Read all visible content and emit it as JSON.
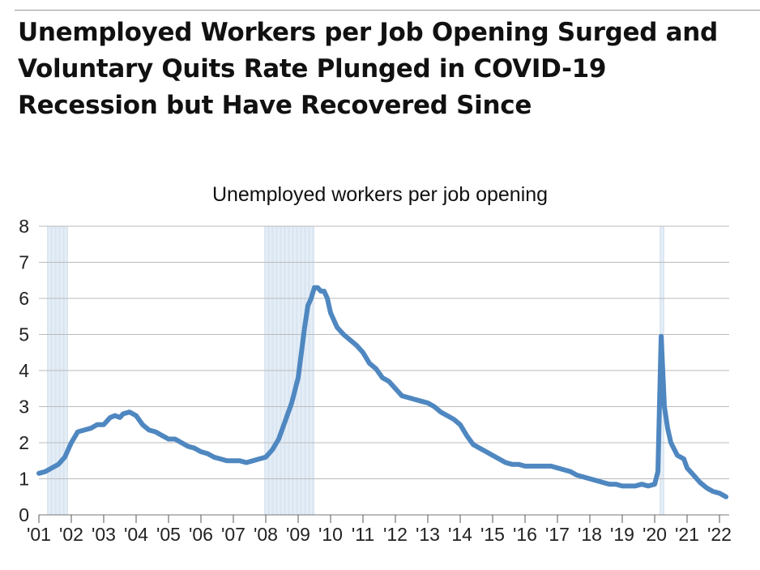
{
  "title": "Unemployed Workers per Job Opening Surged and Voluntary Quits Rate Plunged in COVID-19 Recession but Have Recovered Since",
  "colors": {
    "line": "#4f87c0",
    "recession": "#dbe7f3",
    "grid": "#bbbbbb"
  },
  "chart_data": {
    "type": "line",
    "title": "Unemployed workers per job opening",
    "xlabel": "",
    "ylabel": "",
    "ylim": [
      0,
      8
    ],
    "yticks": [
      0,
      1,
      2,
      3,
      4,
      5,
      6,
      7,
      8
    ],
    "xlim": [
      2001.0,
      2022.3
    ],
    "xticks": [
      "'01",
      "'02",
      "'03",
      "'04",
      "'05",
      "'06",
      "'07",
      "'08",
      "'09",
      "'10",
      "'11",
      "'12",
      "'13",
      "'14",
      "'15",
      "'16",
      "'17",
      "'18",
      "'19",
      "'20",
      "'21",
      "'22"
    ],
    "grid": true,
    "legend": "none",
    "recessions": [
      [
        2001.25,
        2001.9
      ],
      [
        2007.95,
        2009.5
      ],
      [
        2020.15,
        2020.3
      ]
    ],
    "series": [
      {
        "x": [
          2001.0,
          2001.2,
          2001.4,
          2001.6,
          2001.8,
          2002.0,
          2002.2,
          2002.4,
          2002.6,
          2002.8,
          2003.0,
          2003.2,
          2003.35,
          2003.5,
          2003.6,
          2003.8,
          2004.0,
          2004.2,
          2004.4,
          2004.6,
          2004.8,
          2005.0,
          2005.2,
          2005.4,
          2005.6,
          2005.8,
          2006.0,
          2006.2,
          2006.4,
          2006.6,
          2006.8,
          2007.0,
          2007.2,
          2007.4,
          2007.6,
          2007.8,
          2008.0,
          2008.2,
          2008.4,
          2008.6,
          2008.8,
          2009.0,
          2009.1,
          2009.2,
          2009.3,
          2009.4,
          2009.5,
          2009.6,
          2009.7,
          2009.8,
          2009.9,
          2010.0,
          2010.2,
          2010.4,
          2010.6,
          2010.8,
          2011.0,
          2011.2,
          2011.4,
          2011.6,
          2011.8,
          2012.0,
          2012.2,
          2012.4,
          2012.6,
          2012.8,
          2013.0,
          2013.2,
          2013.4,
          2013.6,
          2013.8,
          2014.0,
          2014.2,
          2014.4,
          2014.6,
          2014.8,
          2015.0,
          2015.2,
          2015.4,
          2015.6,
          2015.8,
          2016.0,
          2016.2,
          2016.4,
          2016.6,
          2016.8,
          2017.0,
          2017.2,
          2017.4,
          2017.6,
          2017.8,
          2018.0,
          2018.2,
          2018.4,
          2018.6,
          2018.8,
          2019.0,
          2019.2,
          2019.4,
          2019.6,
          2019.8,
          2020.0,
          2020.1,
          2020.2,
          2020.25,
          2020.3,
          2020.4,
          2020.5,
          2020.7,
          2020.9,
          2021.0,
          2021.2,
          2021.4,
          2021.6,
          2021.8,
          2022.0,
          2022.2
        ],
        "y": [
          1.15,
          1.2,
          1.3,
          1.4,
          1.6,
          2.0,
          2.3,
          2.35,
          2.4,
          2.5,
          2.5,
          2.7,
          2.75,
          2.7,
          2.8,
          2.85,
          2.75,
          2.5,
          2.35,
          2.3,
          2.2,
          2.1,
          2.1,
          2.0,
          1.9,
          1.85,
          1.75,
          1.7,
          1.6,
          1.55,
          1.5,
          1.5,
          1.5,
          1.45,
          1.5,
          1.55,
          1.6,
          1.8,
          2.1,
          2.6,
          3.1,
          3.8,
          4.5,
          5.2,
          5.8,
          6.0,
          6.3,
          6.3,
          6.2,
          6.2,
          6.0,
          5.6,
          5.2,
          5.0,
          4.85,
          4.7,
          4.5,
          4.2,
          4.05,
          3.8,
          3.7,
          3.5,
          3.3,
          3.25,
          3.2,
          3.15,
          3.1,
          3.0,
          2.85,
          2.75,
          2.65,
          2.5,
          2.2,
          1.95,
          1.85,
          1.75,
          1.65,
          1.55,
          1.45,
          1.4,
          1.4,
          1.35,
          1.35,
          1.35,
          1.35,
          1.35,
          1.3,
          1.25,
          1.2,
          1.1,
          1.05,
          1.0,
          0.95,
          0.9,
          0.85,
          0.85,
          0.8,
          0.8,
          0.8,
          0.85,
          0.8,
          0.85,
          1.2,
          4.95,
          4.0,
          3.0,
          2.4,
          2.0,
          1.65,
          1.55,
          1.3,
          1.1,
          0.9,
          0.75,
          0.65,
          0.6,
          0.5
        ]
      }
    ]
  }
}
